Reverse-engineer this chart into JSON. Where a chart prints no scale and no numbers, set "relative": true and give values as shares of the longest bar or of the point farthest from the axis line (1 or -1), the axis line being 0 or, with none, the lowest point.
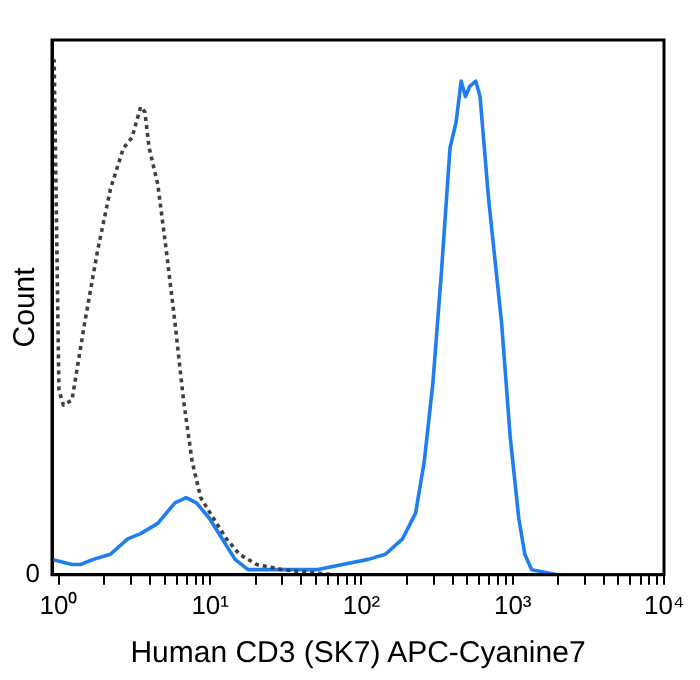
{
  "chart_data": {
    "type": "line",
    "xlabel": "Human CD3 (SK7) APC-Cyanine7",
    "ylabel": "Count",
    "relative": true,
    "log": "x",
    "xlim": [
      0.9,
      10000
    ],
    "xticks": [
      {
        "value": 1,
        "label": "10⁰"
      },
      {
        "value": 2,
        "label": null
      },
      {
        "value": 3,
        "label": null
      },
      {
        "value": 4,
        "label": null
      },
      {
        "value": 5,
        "label": null
      },
      {
        "value": 6,
        "label": null
      },
      {
        "value": 7,
        "label": null
      },
      {
        "value": 8,
        "label": null
      },
      {
        "value": 9,
        "label": null
      },
      {
        "value": 10,
        "label": "10¹"
      },
      {
        "value": 20,
        "label": null
      },
      {
        "value": 30,
        "label": null
      },
      {
        "value": 40,
        "label": null
      },
      {
        "value": 50,
        "label": null
      },
      {
        "value": 60,
        "label": null
      },
      {
        "value": 70,
        "label": null
      },
      {
        "value": 80,
        "label": null
      },
      {
        "value": 90,
        "label": null
      },
      {
        "value": 100,
        "label": "10²"
      },
      {
        "value": 200,
        "label": null
      },
      {
        "value": 300,
        "label": null
      },
      {
        "value": 400,
        "label": null
      },
      {
        "value": 500,
        "label": null
      },
      {
        "value": 600,
        "label": null
      },
      {
        "value": 700,
        "label": null
      },
      {
        "value": 800,
        "label": null
      },
      {
        "value": 900,
        "label": null
      },
      {
        "value": 1000,
        "label": "10³"
      },
      {
        "value": 2000,
        "label": null
      },
      {
        "value": 3000,
        "label": null
      },
      {
        "value": 4000,
        "label": null
      },
      {
        "value": 5000,
        "label": null
      },
      {
        "value": 6000,
        "label": null
      },
      {
        "value": 7000,
        "label": null
      },
      {
        "value": 8000,
        "label": null
      },
      {
        "value": 9000,
        "label": null
      },
      {
        "value": 10000,
        "label": "10⁴"
      }
    ],
    "annotations": [
      "0"
    ],
    "legend": false,
    "grid": false,
    "marker": "none",
    "series": [
      {
        "color": "#404040",
        "line_style": "dotted",
        "x": [
          0.9,
          0.93,
          1.0,
          1.07,
          1.22,
          1.48,
          1.8,
          2.19,
          2.67,
          3.04,
          3.47,
          3.7,
          3.95,
          4.5,
          5.13,
          5.85,
          6.66,
          7.6,
          8.66,
          10.5,
          12.8,
          15.6,
          20.3,
          30,
          66,
          243,
          9500
        ],
        "values": [
          1,
          1,
          0.36,
          0.33,
          0.34,
          0.49,
          0.63,
          0.75,
          0.83,
          0.85,
          0.91,
          0.9,
          0.83,
          0.76,
          0.63,
          0.49,
          0.34,
          0.22,
          0.15,
          0.11,
          0.07,
          0.04,
          0.02,
          0.01,
          0,
          0,
          0
        ]
      },
      {
        "color": "#1e7ef0",
        "line_style": "solid",
        "x": [
          0.9,
          1.22,
          1.39,
          1.69,
          2.19,
          2.85,
          3.47,
          4.5,
          5.13,
          5.85,
          6.93,
          8.11,
          9.87,
          12,
          14.6,
          17.8,
          26.3,
          50.6,
          75,
          111,
          144,
          187,
          228,
          260,
          296,
          338,
          385,
          422,
          456,
          487,
          520,
          570,
          608,
          693,
          844,
          961,
          1096,
          1202,
          1334,
          1974,
          9500
        ],
        "values": [
          0.03,
          0.02,
          0.02,
          0.03,
          0.04,
          0.07,
          0.08,
          0.1,
          0.12,
          0.14,
          0.15,
          0.14,
          0.11,
          0.07,
          0.03,
          0.01,
          0.01,
          0.01,
          0.02,
          0.03,
          0.04,
          0.07,
          0.12,
          0.22,
          0.37,
          0.59,
          0.83,
          0.88,
          0.96,
          0.93,
          0.95,
          0.96,
          0.93,
          0.73,
          0.49,
          0.27,
          0.11,
          0.04,
          0.01,
          0,
          0
        ]
      }
    ]
  }
}
